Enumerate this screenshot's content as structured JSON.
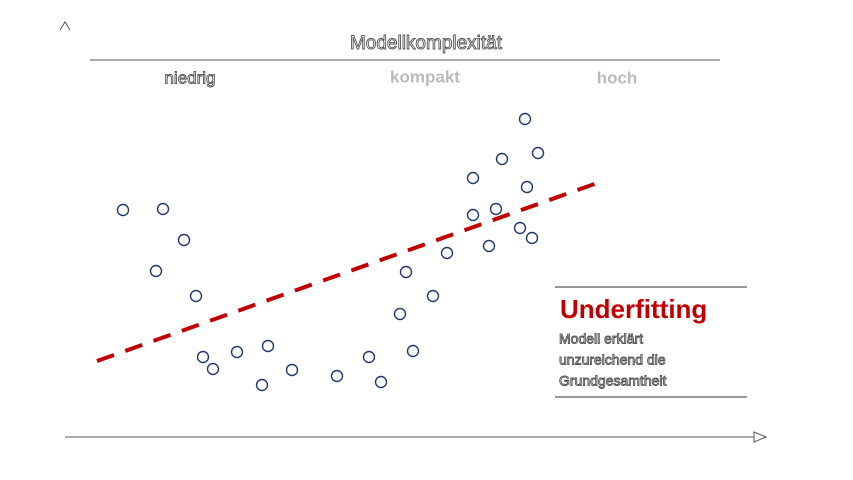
{
  "header": {
    "title": "Modellkomplexität",
    "levels": [
      "niedrig",
      "kompakt",
      "hoch"
    ]
  },
  "callout": {
    "title": "Underfitting",
    "lines": [
      "Modell erklärt",
      "unzureichend die",
      "Grundgesamtheit"
    ]
  }
}
